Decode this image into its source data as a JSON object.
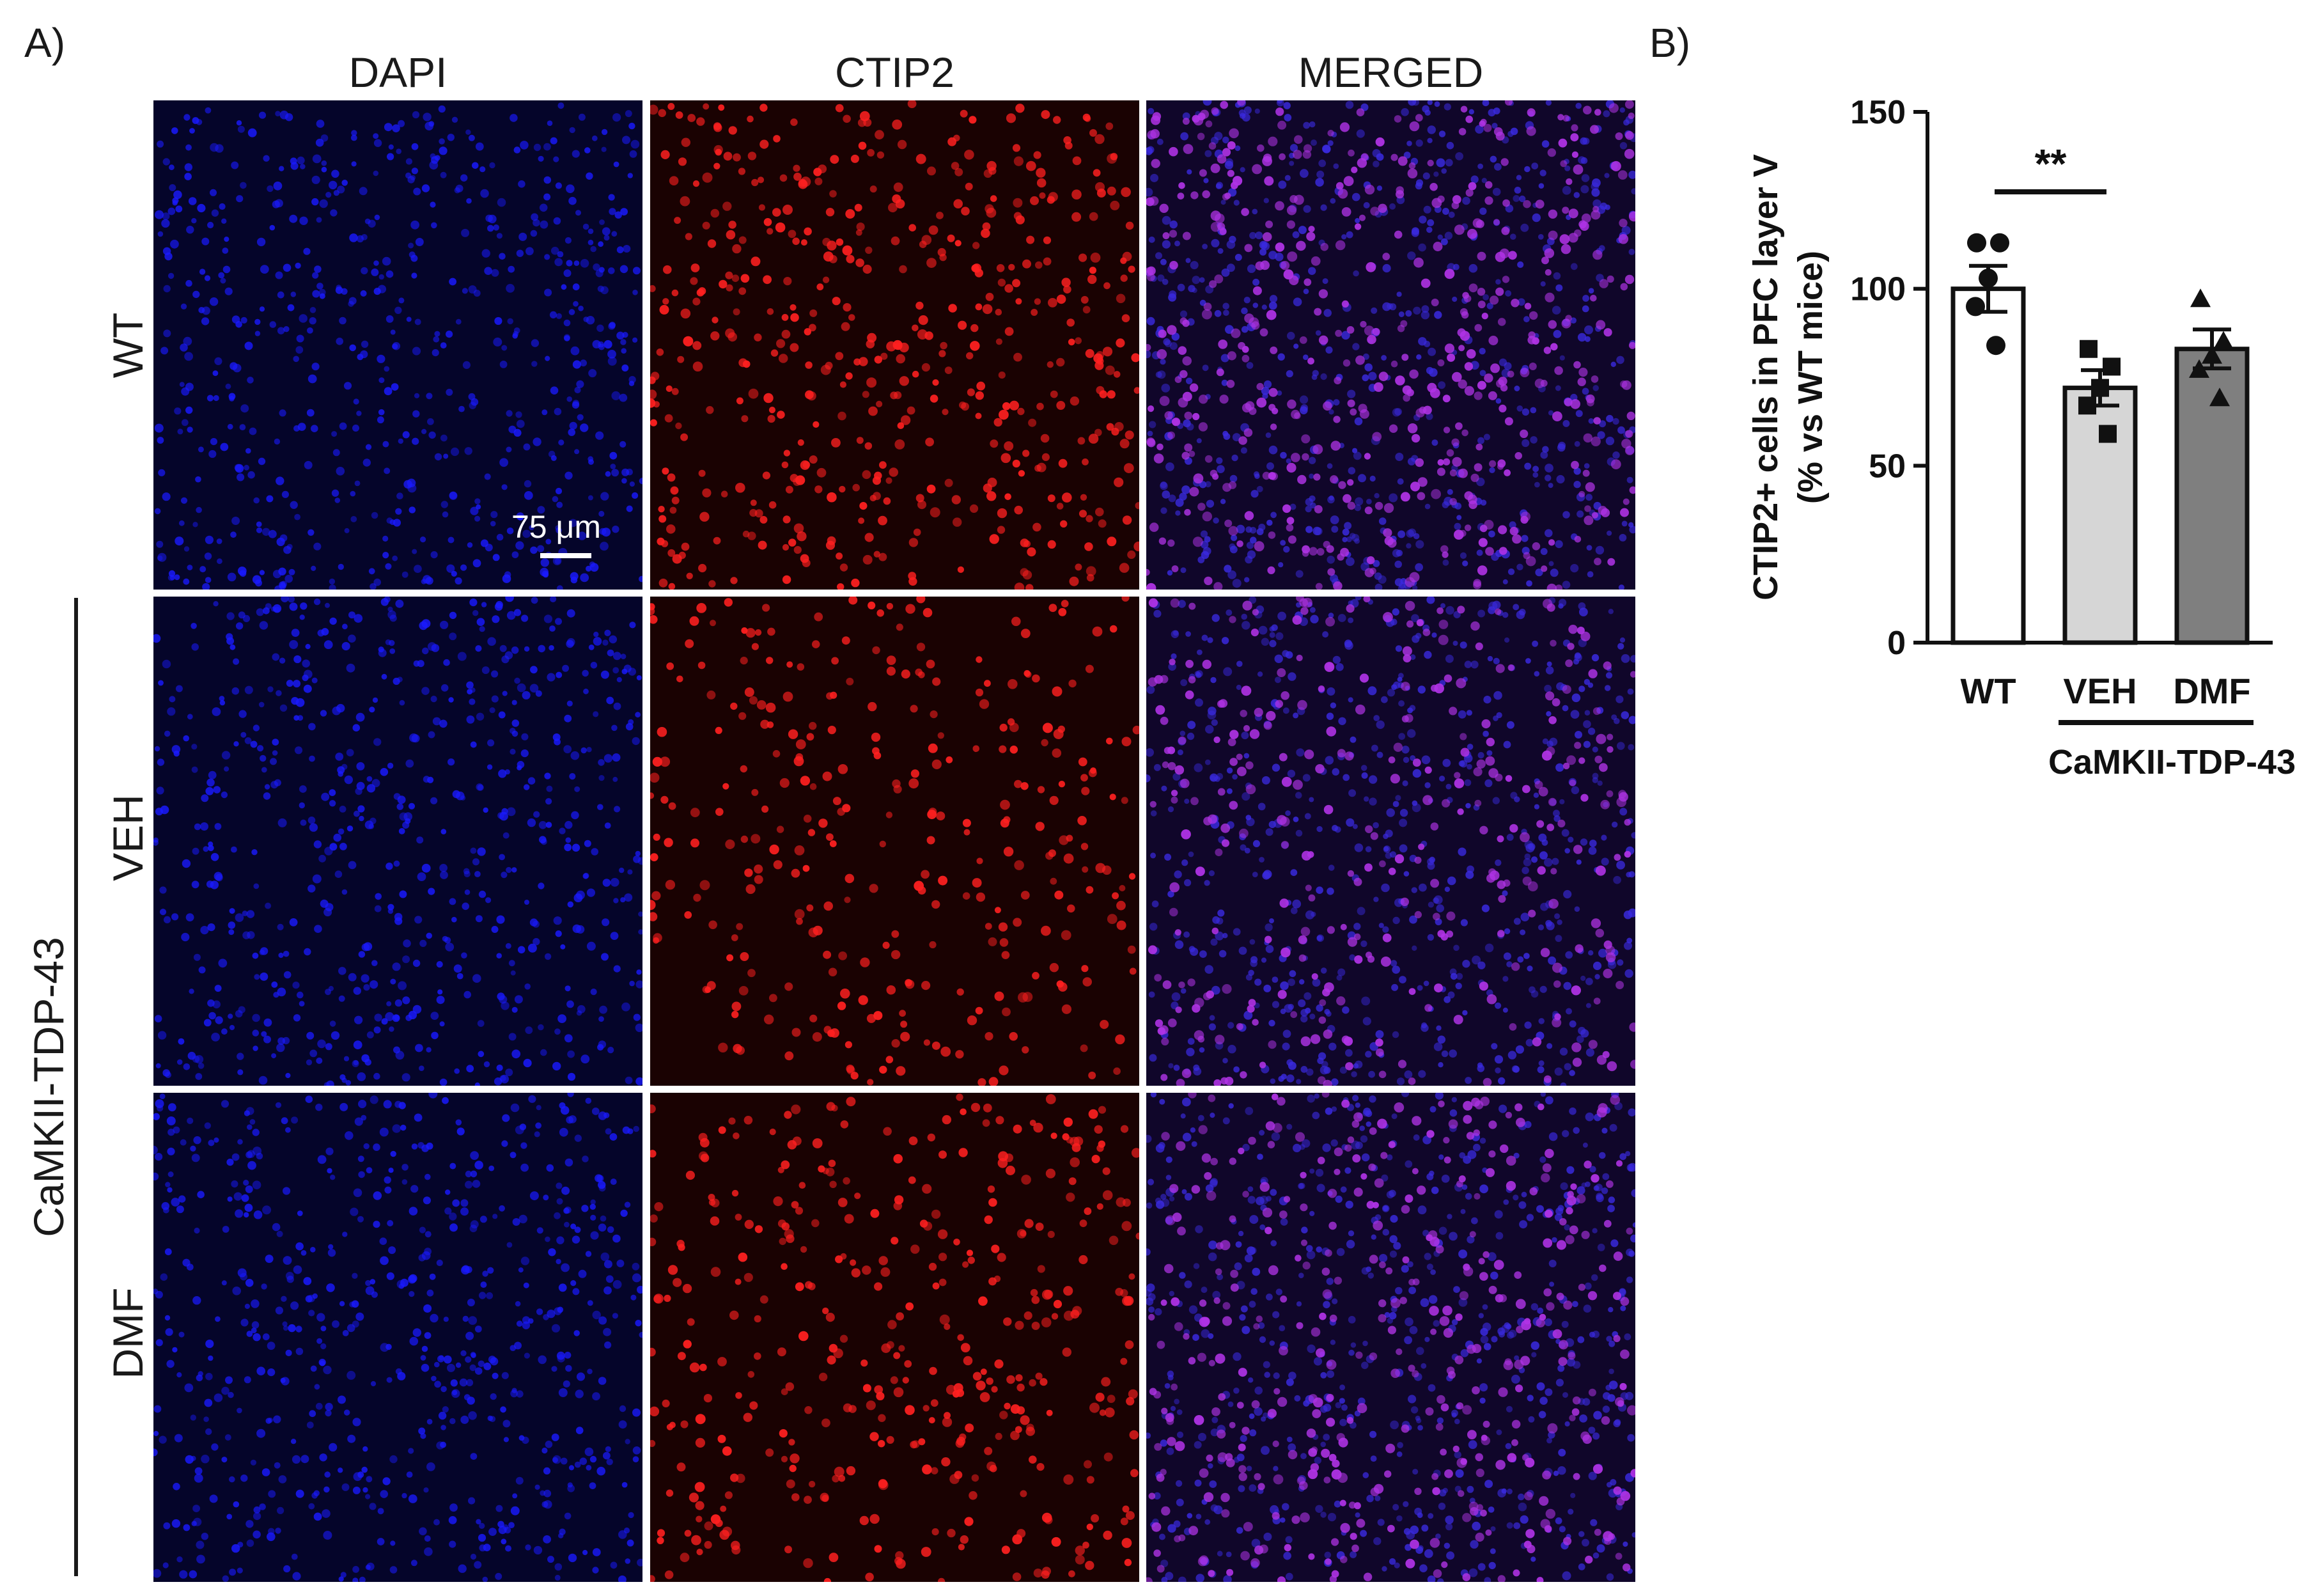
{
  "panel_a": {
    "letter": "A)",
    "columns": [
      "DAPI",
      "CTIP2",
      "MERGED"
    ],
    "rows": [
      "WT",
      "VEH",
      "DMF"
    ],
    "group_label": "CaMKII-TDP-43",
    "scale_bar_label": "75 μm",
    "colors": {
      "dapi": "#1a1aff",
      "ctip2": "#ff2020",
      "merged": "#b033e6",
      "background_blue": "#05052a",
      "background_red": "#1a0202",
      "background_merged": "#10062a"
    },
    "ctip2_density": [
      1.0,
      0.62,
      0.78
    ]
  },
  "panel_b": {
    "letter": "B)",
    "group_label": "CaMKII-TDP-43"
  },
  "chart_data": {
    "type": "bar",
    "categories": [
      "WT",
      "VEH",
      "DMF"
    ],
    "values": [
      100,
      72,
      83
    ],
    "sem": [
      6.5,
      5,
      5.5
    ],
    "points": [
      [
        113,
        113,
        103,
        95,
        84
      ],
      [
        83,
        78,
        72,
        67,
        59
      ],
      [
        97,
        85,
        81,
        77,
        69
      ]
    ],
    "markers": [
      "circle",
      "square",
      "triangle"
    ],
    "bar_colors": [
      "#ffffff",
      "#d6d6d6",
      "#7f7f7f"
    ],
    "ylabel_line1": "CTIP2+ cells in PFC layer V",
    "ylabel_line2": "(% vs WT mice)",
    "ylim": [
      0,
      150
    ],
    "yticks": [
      0,
      50,
      100,
      150
    ],
    "significance": {
      "from": "WT",
      "to": "VEH",
      "label": "**"
    }
  }
}
